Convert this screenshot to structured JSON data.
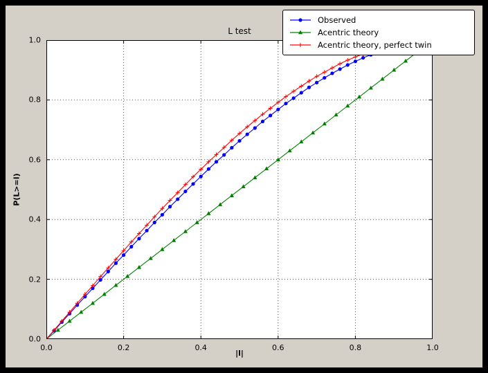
{
  "window": {
    "outer_bg": "#000000",
    "figure_bg": "#d4d0c8",
    "axes_bg": "#ffffff"
  },
  "chart_data": {
    "type": "line",
    "title": "L test",
    "xlabel": "|l|",
    "ylabel": "P(L>=l)",
    "xlim": [
      0.0,
      1.0
    ],
    "ylim": [
      0.0,
      1.0
    ],
    "xticks": [
      0.0,
      0.2,
      0.4,
      0.6,
      0.8,
      1.0
    ],
    "yticks": [
      0.0,
      0.2,
      0.4,
      0.6,
      0.8,
      1.0
    ],
    "xtick_labels": [
      "0.0",
      "0.2",
      "0.4",
      "0.6",
      "0.8",
      "1.0"
    ],
    "ytick_labels": [
      "0.0",
      "0.2",
      "0.4",
      "0.6",
      "0.8",
      "1.0"
    ],
    "grid": true,
    "grid_style": "dotted",
    "legend_position": "upper right",
    "series": [
      {
        "name": "Observed",
        "color": "#0000ff",
        "marker": "circle",
        "x": [
          0.0,
          0.02,
          0.04,
          0.06,
          0.08,
          0.1,
          0.12,
          0.14,
          0.16,
          0.18,
          0.2,
          0.22,
          0.24,
          0.26,
          0.28,
          0.3,
          0.32,
          0.34,
          0.36,
          0.38,
          0.4,
          0.42,
          0.44,
          0.46,
          0.48,
          0.5,
          0.52,
          0.54,
          0.56,
          0.58,
          0.6,
          0.62,
          0.64,
          0.66,
          0.68,
          0.7,
          0.72,
          0.74,
          0.76,
          0.78,
          0.8,
          0.82,
          0.84,
          0.86
        ],
        "y": [
          0.0,
          0.028,
          0.057,
          0.085,
          0.114,
          0.142,
          0.17,
          0.198,
          0.226,
          0.254,
          0.281,
          0.309,
          0.336,
          0.363,
          0.39,
          0.416,
          0.443,
          0.468,
          0.494,
          0.519,
          0.544,
          0.569,
          0.593,
          0.616,
          0.64,
          0.663,
          0.685,
          0.706,
          0.728,
          0.748,
          0.768,
          0.788,
          0.806,
          0.824,
          0.842,
          0.858,
          0.874,
          0.889,
          0.903,
          0.917,
          0.929,
          0.941,
          0.951,
          0.961
        ]
      },
      {
        "name": "Acentric theory",
        "color": "#008000",
        "marker": "triangle",
        "x": [
          0.0,
          0.03,
          0.06,
          0.09,
          0.12,
          0.15,
          0.18,
          0.21,
          0.24,
          0.27,
          0.3,
          0.33,
          0.36,
          0.39,
          0.42,
          0.45,
          0.48,
          0.51,
          0.54,
          0.57,
          0.6,
          0.63,
          0.66,
          0.69,
          0.72,
          0.75,
          0.78,
          0.81,
          0.84,
          0.87,
          0.9,
          0.93,
          0.96
        ],
        "y": [
          0.0,
          0.03,
          0.06,
          0.09,
          0.12,
          0.15,
          0.18,
          0.21,
          0.24,
          0.27,
          0.3,
          0.33,
          0.36,
          0.39,
          0.42,
          0.45,
          0.48,
          0.51,
          0.54,
          0.57,
          0.6,
          0.63,
          0.66,
          0.69,
          0.72,
          0.75,
          0.78,
          0.81,
          0.84,
          0.87,
          0.9,
          0.93,
          0.96
        ]
      },
      {
        "name": "Acentric theory, perfect twin",
        "color": "#ff0000",
        "marker": "plus",
        "x": [
          0.0,
          0.02,
          0.04,
          0.06,
          0.08,
          0.1,
          0.12,
          0.14,
          0.16,
          0.18,
          0.2,
          0.22,
          0.24,
          0.26,
          0.28,
          0.3,
          0.32,
          0.34,
          0.36,
          0.38,
          0.4,
          0.42,
          0.44,
          0.46,
          0.48,
          0.5,
          0.52,
          0.54,
          0.56,
          0.58,
          0.6,
          0.62,
          0.64,
          0.66,
          0.68,
          0.7,
          0.72,
          0.74,
          0.76,
          0.78,
          0.8,
          0.82,
          0.84,
          0.86
        ],
        "y": [
          0.0,
          0.03,
          0.06,
          0.09,
          0.12,
          0.15,
          0.179,
          0.209,
          0.238,
          0.267,
          0.296,
          0.325,
          0.353,
          0.381,
          0.409,
          0.437,
          0.464,
          0.49,
          0.517,
          0.543,
          0.568,
          0.593,
          0.617,
          0.641,
          0.665,
          0.688,
          0.71,
          0.731,
          0.752,
          0.772,
          0.792,
          0.811,
          0.829,
          0.846,
          0.863,
          0.879,
          0.893,
          0.907,
          0.921,
          0.933,
          0.944,
          0.954,
          0.964,
          0.972
        ]
      }
    ]
  }
}
